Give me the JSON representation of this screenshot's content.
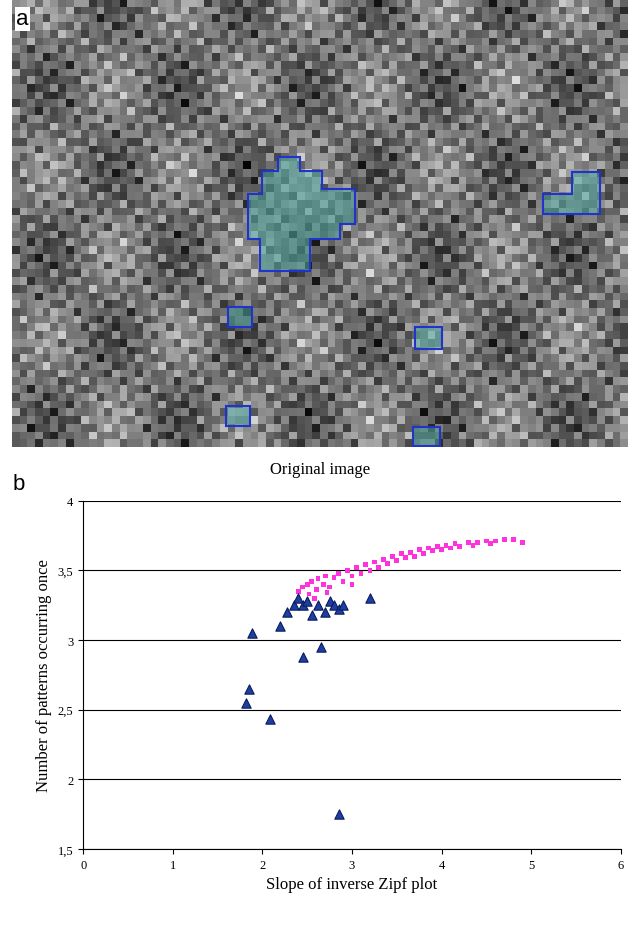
{
  "image_panel": {
    "panel_label": "a",
    "caption": "Original image"
  },
  "chart_data": {
    "panel_label": "b",
    "type": "scatter",
    "xlabel": "Slope of inverse Zipf plot",
    "ylabel": "Number of patterns occurring once",
    "xlim": [
      0,
      6
    ],
    "xticks": [
      0,
      1,
      2,
      3,
      4,
      5,
      6
    ],
    "ylim": [
      1.5,
      4
    ],
    "yticks": [
      {
        "value": 1.5,
        "label": "1,5"
      },
      2,
      {
        "value": 2.5,
        "label": "2,5"
      },
      3,
      {
        "value": 3.5,
        "label": "3,5"
      },
      4
    ],
    "grid": "y",
    "series": [
      {
        "color": "#ff33dd",
        "marker": "square",
        "x": [
          2.4,
          2.45,
          2.5,
          2.52,
          2.55,
          2.6,
          2.62,
          2.68,
          2.7,
          2.75,
          2.8,
          2.85,
          2.9,
          2.95,
          3.0,
          3.05,
          3.1,
          3.15,
          3.2,
          3.25,
          3.3,
          3.35,
          3.4,
          3.45,
          3.5,
          3.55,
          3.6,
          3.65,
          3.7,
          3.75,
          3.8,
          3.85,
          3.9,
          3.95,
          4.0,
          4.05,
          4.1,
          4.15,
          4.2,
          4.3,
          4.35,
          4.4,
          4.5,
          4.55,
          4.6,
          4.7,
          4.8,
          4.9,
          2.58,
          2.72,
          3.0
        ],
        "y": [
          3.35,
          3.38,
          3.4,
          3.33,
          3.42,
          3.36,
          3.44,
          3.4,
          3.46,
          3.38,
          3.45,
          3.48,
          3.42,
          3.5,
          3.46,
          3.52,
          3.48,
          3.54,
          3.5,
          3.56,
          3.52,
          3.58,
          3.55,
          3.6,
          3.57,
          3.62,
          3.59,
          3.63,
          3.6,
          3.65,
          3.62,
          3.66,
          3.64,
          3.67,
          3.65,
          3.68,
          3.66,
          3.69,
          3.67,
          3.7,
          3.68,
          3.7,
          3.71,
          3.69,
          3.71,
          3.72,
          3.72,
          3.7,
          3.3,
          3.34,
          3.4
        ]
      },
      {
        "color": "#1f3fa0",
        "marker": "triangle",
        "x": [
          1.85,
          1.82,
          1.88,
          2.08,
          2.2,
          2.28,
          2.35,
          2.4,
          2.45,
          2.5,
          2.55,
          2.62,
          2.7,
          2.75,
          2.8,
          2.85,
          2.65,
          2.45,
          2.9,
          3.2,
          2.85
        ],
        "y": [
          2.65,
          2.55,
          3.05,
          2.43,
          3.1,
          3.2,
          3.25,
          3.3,
          3.25,
          3.28,
          3.18,
          3.25,
          3.2,
          3.28,
          3.25,
          3.22,
          2.95,
          2.88,
          3.25,
          3.3,
          1.75
        ]
      }
    ]
  }
}
